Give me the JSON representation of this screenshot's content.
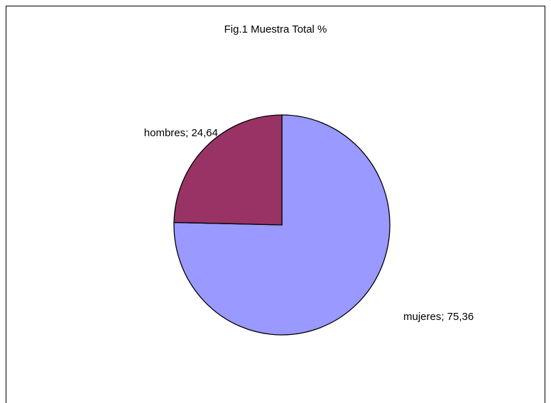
{
  "chart_data": {
    "type": "pie",
    "title": "Fig.1  Muestra Total  %",
    "values": [
      75.36,
      24.64
    ],
    "value_labels": [
      "mujeres; 75,36",
      "hombres; 24,64"
    ],
    "colors": [
      "#9999ff",
      "#993366"
    ]
  }
}
